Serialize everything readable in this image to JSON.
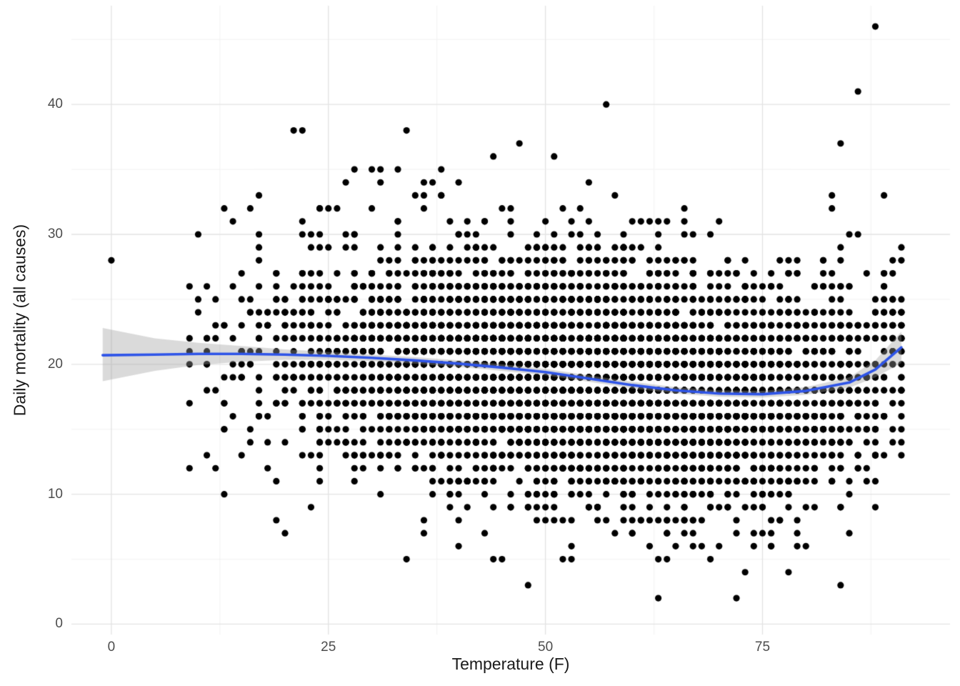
{
  "chart_data": {
    "type": "scatter",
    "title": "",
    "xlabel": "Temperature (F)",
    "ylabel": "Daily mortality (all causes)",
    "x_ticks": [
      0,
      25,
      50,
      75
    ],
    "y_ticks": [
      0,
      10,
      20,
      30,
      40
    ],
    "x_minor": [
      12.5,
      37.5,
      62.5,
      87.5
    ],
    "y_minor": [
      5,
      15,
      25,
      35,
      45
    ],
    "xlim": [
      -4.6,
      96.6
    ],
    "ylim": [
      -0.8,
      47.6
    ],
    "grid": "major+minor",
    "legend": "none",
    "point_radius": 4.6,
    "colors": {
      "background": "#ffffff",
      "grid_major": "#e3e3e3",
      "grid_minor": "#f0f0f0",
      "point": "#000000",
      "line": "#2e54e8",
      "ribbon": "#9e9e9e",
      "ribbon_alpha": 0.38
    },
    "smooth": {
      "x": [
        -1,
        5,
        10,
        15,
        20,
        25,
        30,
        35,
        40,
        45,
        50,
        55,
        60,
        65,
        70,
        75,
        80,
        85,
        88,
        91
      ],
      "y": [
        20.7,
        20.75,
        20.8,
        20.8,
        20.75,
        20.65,
        20.5,
        20.3,
        20.05,
        19.75,
        19.4,
        18.9,
        18.4,
        18.0,
        17.75,
        17.7,
        17.95,
        18.6,
        19.6,
        21.3
      ],
      "lower": [
        18.7,
        19.5,
        19.95,
        20.2,
        20.35,
        20.35,
        20.25,
        20.05,
        19.8,
        19.5,
        19.15,
        18.65,
        18.15,
        17.75,
        17.5,
        17.45,
        17.65,
        18.2,
        19.0,
        20.1
      ],
      "upper": [
        22.8,
        22.0,
        21.65,
        21.4,
        21.15,
        20.95,
        20.75,
        20.55,
        20.3,
        20.0,
        19.65,
        19.15,
        18.65,
        18.25,
        18.0,
        17.95,
        18.25,
        19.0,
        20.3,
        22.5
      ]
    },
    "extra_points": [
      [
        0,
        28
      ],
      [
        10,
        24
      ],
      [
        10,
        25
      ],
      [
        11,
        20
      ],
      [
        11,
        13
      ],
      [
        12,
        18
      ],
      [
        13,
        10
      ],
      [
        14,
        31
      ],
      [
        16,
        32
      ],
      [
        17,
        26
      ],
      [
        19,
        8
      ],
      [
        20,
        7
      ],
      [
        21,
        38
      ],
      [
        22,
        38
      ],
      [
        23,
        9
      ],
      [
        25,
        32
      ],
      [
        27,
        34
      ],
      [
        28,
        35
      ],
      [
        30,
        35
      ],
      [
        31,
        35
      ],
      [
        33,
        35
      ],
      [
        34,
        38
      ],
      [
        36,
        34
      ],
      [
        38,
        35
      ],
      [
        40,
        34
      ],
      [
        44,
        36
      ],
      [
        45,
        5
      ],
      [
        47,
        37
      ],
      [
        48,
        3
      ],
      [
        51,
        36
      ],
      [
        52,
        5
      ],
      [
        55,
        34
      ],
      [
        57,
        40
      ],
      [
        58,
        33
      ],
      [
        60,
        7
      ],
      [
        62,
        6
      ],
      [
        63,
        2
      ],
      [
        65,
        6
      ],
      [
        68,
        6
      ],
      [
        70,
        6
      ],
      [
        72,
        2
      ],
      [
        74,
        6
      ],
      [
        76,
        6
      ],
      [
        79,
        7
      ],
      [
        83,
        32
      ],
      [
        84,
        3
      ],
      [
        84,
        37
      ],
      [
        85,
        30
      ],
      [
        86,
        41
      ],
      [
        88,
        46
      ],
      [
        89,
        33
      ],
      [
        90,
        25
      ],
      [
        91,
        25
      ],
      [
        91,
        22
      ]
    ],
    "generator": {
      "seed": 42,
      "n": 5000,
      "x_mean": 56,
      "x_sd": 18.5,
      "x_min": 9,
      "x_max": 91,
      "y_sd": 4.5,
      "y_min": 4,
      "y_max": 37
    }
  }
}
